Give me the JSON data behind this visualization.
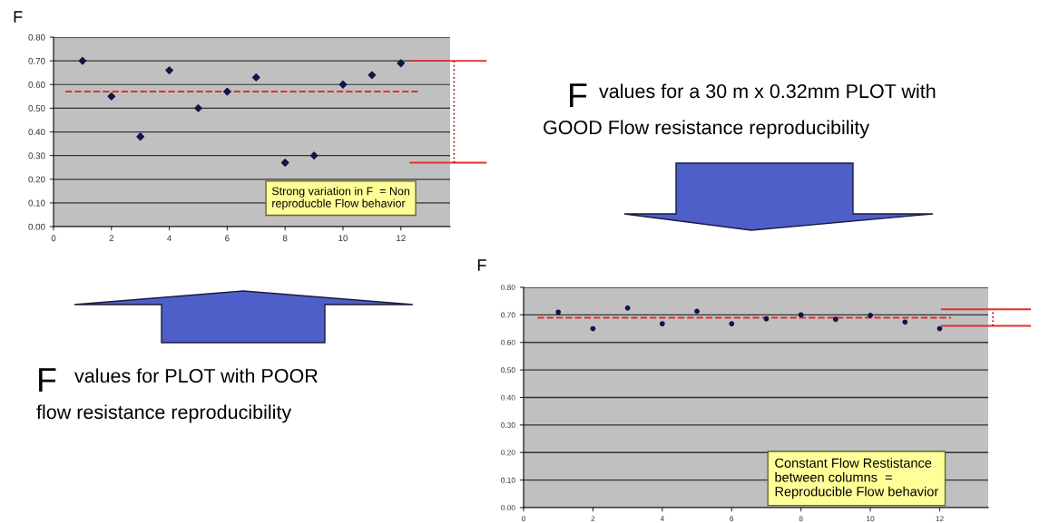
{
  "chart_data": [
    {
      "type": "scatter",
      "ylabel": "F",
      "x": [
        1,
        2,
        3,
        4,
        5,
        6,
        7,
        8,
        9,
        10,
        11,
        12
      ],
      "values": [
        0.7,
        0.55,
        0.38,
        0.66,
        0.5,
        0.57,
        0.63,
        0.27,
        0.3,
        0.6,
        0.64,
        0.69
      ],
      "color": "#14144a",
      "marker": "diamond",
      "grid": "y",
      "xlim": [
        0,
        13.7
      ],
      "xticks": [
        0,
        2,
        4,
        6,
        8,
        10,
        12
      ],
      "ylim": [
        0,
        0.8
      ],
      "yticks": [
        {
          "value": 0,
          "label": "0.00"
        },
        {
          "value": 0.1,
          "label": "0.10"
        },
        {
          "value": 0.2,
          "label": "0.20"
        },
        {
          "value": 0.3,
          "label": "0.30"
        },
        {
          "value": 0.4,
          "label": "0.40"
        },
        {
          "value": 0.5,
          "label": "0.50"
        },
        {
          "value": 0.6,
          "label": "0.60"
        },
        {
          "value": 0.7,
          "label": "0.70"
        },
        {
          "value": 0.8,
          "label": "0.80"
        }
      ],
      "ref_lines": [
        {
          "axis": "y",
          "value": 0.57,
          "color": "#e03030",
          "line_style": "dashed"
        },
        {
          "axis": "y",
          "value": 0.7,
          "color": "#e03030",
          "line_style": "solid"
        },
        {
          "axis": "y",
          "value": 0.27,
          "color": "#e03030",
          "line_style": "solid"
        }
      ],
      "annotations": [
        "Strong variation in F  = Non\nreproducble Flow behavior",
        "F",
        "values for PLOT with POOR\nflow resistance reproducibility"
      ]
    },
    {
      "type": "scatter",
      "ylabel": "F",
      "x": [
        1,
        2,
        3,
        4,
        5,
        6,
        7,
        8,
        9,
        10,
        11,
        12
      ],
      "values": [
        0.71,
        0.65,
        0.725,
        0.668,
        0.713,
        0.668,
        0.686,
        0.7,
        0.684,
        0.698,
        0.674,
        0.65
      ],
      "color": "#14144a",
      "marker": "circle",
      "grid": "y",
      "xlim": [
        0,
        13.4
      ],
      "xticks": [
        0,
        2,
        4,
        6,
        8,
        10,
        12
      ],
      "ylim": [
        0,
        0.8
      ],
      "yticks": [
        {
          "value": 0,
          "label": "0.00"
        },
        {
          "value": 0.1,
          "label": "0.10"
        },
        {
          "value": 0.2,
          "label": "0.20"
        },
        {
          "value": 0.3,
          "label": "0.30"
        },
        {
          "value": 0.4,
          "label": "0.40"
        },
        {
          "value": 0.5,
          "label": "0.50"
        },
        {
          "value": 0.6,
          "label": "0.60"
        },
        {
          "value": 0.7,
          "label": "0.70"
        },
        {
          "value": 0.8,
          "label": "0.80"
        }
      ],
      "ref_lines": [
        {
          "axis": "y",
          "value": 0.69,
          "color": "#e03030",
          "line_style": "dashed"
        },
        {
          "axis": "y",
          "value": 0.72,
          "color": "#e03030",
          "line_style": "solid"
        },
        {
          "axis": "y",
          "value": 0.66,
          "color": "#e03030",
          "line_style": "solid"
        }
      ],
      "annotations": [
        "Constant Flow Restistance\nbetween columns  =\nReproducible Flow behavior",
        "F",
        "values for a 30 m x 0.32mm PLOT with\nGOOD Flow resistance reproducibility"
      ]
    }
  ]
}
